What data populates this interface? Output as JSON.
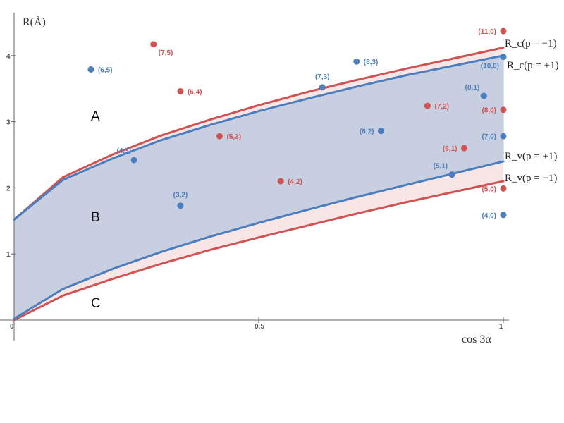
{
  "chart_data": {
    "type": "scatter",
    "title": "",
    "xlabel": "cos 3α",
    "ylabel": "R(Å)",
    "xlim": [
      0,
      1
    ],
    "ylim": [
      0,
      4.5
    ],
    "xticks": [
      {
        "value": 0,
        "label": "0"
      },
      {
        "value": 0.5,
        "label": "0.5"
      },
      {
        "value": 1,
        "label": "1"
      }
    ],
    "yticks": [
      {
        "value": 1,
        "label": "1"
      },
      {
        "value": 2,
        "label": "2"
      },
      {
        "value": 3,
        "label": "3"
      },
      {
        "value": 4,
        "label": "4"
      }
    ],
    "grid": false,
    "colors": {
      "blue": "#4a7ebf",
      "red": "#d05353",
      "band_fill": "#c8cfe0",
      "red_band_fill": "#f8e6e6"
    },
    "curves": [
      {
        "id": "rc_minus",
        "label": "R_c(p = −1)",
        "color": "red",
        "x": [
          0,
          0.1,
          0.2,
          0.3,
          0.4,
          0.5,
          0.6,
          0.7,
          0.8,
          0.9,
          1.0
        ],
        "y": [
          1.52,
          2.16,
          2.5,
          2.79,
          3.03,
          3.25,
          3.45,
          3.63,
          3.8,
          3.96,
          4.12
        ]
      },
      {
        "id": "rc_plus",
        "label": "R_c(p = +1)",
        "color": "blue",
        "x": [
          0,
          0.1,
          0.2,
          0.3,
          0.4,
          0.5,
          0.6,
          0.7,
          0.8,
          0.9,
          1.0
        ],
        "y": [
          1.52,
          2.12,
          2.44,
          2.72,
          2.95,
          3.16,
          3.35,
          3.53,
          3.7,
          3.85,
          4.0
        ]
      },
      {
        "id": "rv_plus",
        "label": "R_v(p = +1)",
        "color": "blue",
        "x": [
          0,
          0.1,
          0.2,
          0.3,
          0.4,
          0.5,
          0.6,
          0.7,
          0.8,
          0.9,
          1.0
        ],
        "y": [
          0.02,
          0.47,
          0.77,
          1.03,
          1.26,
          1.47,
          1.67,
          1.86,
          2.04,
          2.22,
          2.4
        ]
      },
      {
        "id": "rv_minus",
        "label": "R_v(p = −1)",
        "color": "red",
        "x": [
          0,
          0.1,
          0.2,
          0.3,
          0.4,
          0.5,
          0.6,
          0.7,
          0.8,
          0.9,
          1.0
        ],
        "y": [
          0.0,
          0.37,
          0.62,
          0.85,
          1.06,
          1.25,
          1.43,
          1.61,
          1.78,
          1.94,
          2.1
        ]
      }
    ],
    "regions": [
      "A",
      "B",
      "C"
    ],
    "series": [
      {
        "color": "blue",
        "points": [
          {
            "label": "(6,5)",
            "x": 0.157,
            "y": 3.79
          },
          {
            "label": "(4,3)",
            "x": 0.245,
            "y": 2.42
          },
          {
            "label": "(3,2)",
            "x": 0.34,
            "y": 1.73
          },
          {
            "label": "(7,3)",
            "x": 0.63,
            "y": 3.52
          },
          {
            "label": "(8,3)",
            "x": 0.7,
            "y": 3.91
          },
          {
            "label": "(6,2)",
            "x": 0.75,
            "y": 2.86
          },
          {
            "label": "(5,1)",
            "x": 0.895,
            "y": 2.2
          },
          {
            "label": "(8,1)",
            "x": 0.96,
            "y": 3.39
          },
          {
            "label": "(10,0)",
            "x": 1.0,
            "y": 3.98
          },
          {
            "label": "(7,0)",
            "x": 1.0,
            "y": 2.78
          },
          {
            "label": "(4,0)",
            "x": 1.0,
            "y": 1.59
          }
        ]
      },
      {
        "color": "red",
        "points": [
          {
            "label": "(7,5)",
            "x": 0.285,
            "y": 4.17
          },
          {
            "label": "(6,4)",
            "x": 0.34,
            "y": 3.46
          },
          {
            "label": "(5,3)",
            "x": 0.42,
            "y": 2.78
          },
          {
            "label": "(4,2)",
            "x": 0.545,
            "y": 2.1
          },
          {
            "label": "(7,2)",
            "x": 0.845,
            "y": 3.24
          },
          {
            "label": "(6,1)",
            "x": 0.92,
            "y": 2.6
          },
          {
            "label": "(11,0)",
            "x": 1.0,
            "y": 4.37
          },
          {
            "label": "(8,0)",
            "x": 1.0,
            "y": 3.18
          },
          {
            "label": "(5,0)",
            "x": 1.0,
            "y": 1.99
          }
        ]
      }
    ]
  }
}
